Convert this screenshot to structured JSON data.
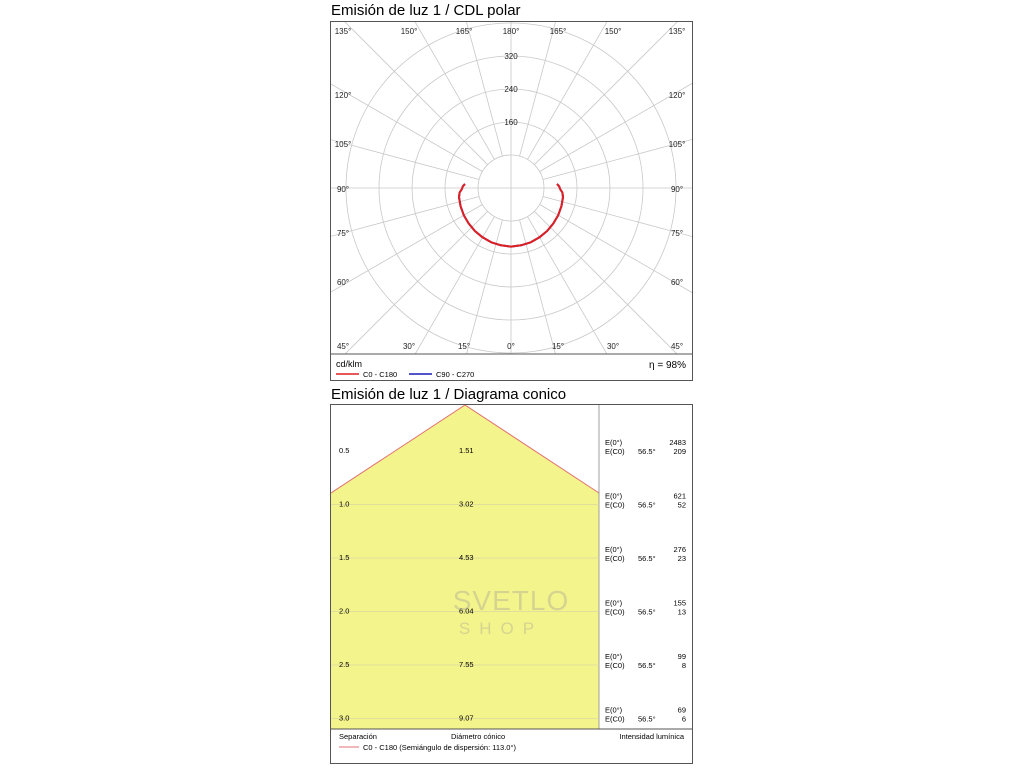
{
  "polar": {
    "title": "Emisión de luz 1 / CDL polar",
    "unit_label": "cd/klm",
    "efficiency": "η = 98%",
    "angle_labels_top": [
      "135°",
      "150°",
      "165°",
      "180°",
      "165°",
      "150°",
      "135°"
    ],
    "angle_labels_side": [
      "120°",
      "105°",
      "90°",
      "75°",
      "60°",
      "45°"
    ],
    "angle_labels_bottom": [
      "45°",
      "30°",
      "15°",
      "0°",
      "15°",
      "30°",
      "45°"
    ],
    "radial_tick_labels": [
      "160",
      "240",
      "320"
    ],
    "legend": [
      {
        "label": "C0 - C180",
        "color": "#e02020"
      },
      {
        "label": "C90 - C270",
        "color": "#1a1ab8"
      }
    ]
  },
  "cone": {
    "title": "Emisión de luz 1 / Diagrama conico",
    "footer_separation": "Separación",
    "footer_diameter": "Diámetro cónico",
    "footer_intensity": "Intensidad lumínica",
    "legend": {
      "label": "C0 - C180 (Semiángulo de dispersión: 113.0°)",
      "color": "#e07070"
    },
    "fill_color": "#f4f48c",
    "e0_label": "E(0°)",
    "ec0_label": "E(C0)",
    "angle_label": "56.5°"
  },
  "watermark": {
    "line1": "SVETLO",
    "line2": "SHOP"
  },
  "chart_data": [
    {
      "type": "polar",
      "title": "Emisión de luz 1 / CDL polar",
      "unit": "cd/klm",
      "radial_ticks": [
        80,
        160,
        240,
        320,
        400
      ],
      "radial_max": 400,
      "series": [
        {
          "name": "C0 - C180",
          "color": "#e02020",
          "angles_deg": [
            0,
            10,
            20,
            30,
            40,
            50,
            60,
            70,
            80,
            85,
            88,
            90,
            92,
            95
          ],
          "values": [
            142,
            141,
            140,
            138,
            136,
            134,
            132,
            130,
            128,
            125,
            120,
            118,
            117,
            112
          ]
        },
        {
          "name": "C90 - C270",
          "color": "#1a1ab8",
          "angles_deg": [
            0,
            10,
            20,
            30,
            40,
            50,
            60,
            70,
            80,
            85,
            88,
            90,
            92,
            95
          ],
          "values": [
            142,
            141,
            140,
            138,
            136,
            134,
            132,
            130,
            128,
            125,
            120,
            118,
            117,
            112
          ]
        }
      ],
      "efficiency_percent": 98
    },
    {
      "type": "table",
      "title": "Emisión de luz 1 / Diagrama conico",
      "half_angle_deg": 56.5,
      "rows": [
        {
          "separation": "0.5",
          "diameter": "1.51",
          "e0": "2483",
          "ec0": "209"
        },
        {
          "separation": "1.0",
          "diameter": "3.02",
          "e0": "621",
          "ec0": "52"
        },
        {
          "separation": "1.5",
          "diameter": "4.53",
          "e0": "276",
          "ec0": "23"
        },
        {
          "separation": "2.0",
          "diameter": "6.04",
          "e0": "155",
          "ec0": "13"
        },
        {
          "separation": "2.5",
          "diameter": "7.55",
          "e0": "99",
          "ec0": "8"
        },
        {
          "separation": "3.0",
          "diameter": "9.07",
          "e0": "69",
          "ec0": "6"
        }
      ]
    }
  ]
}
